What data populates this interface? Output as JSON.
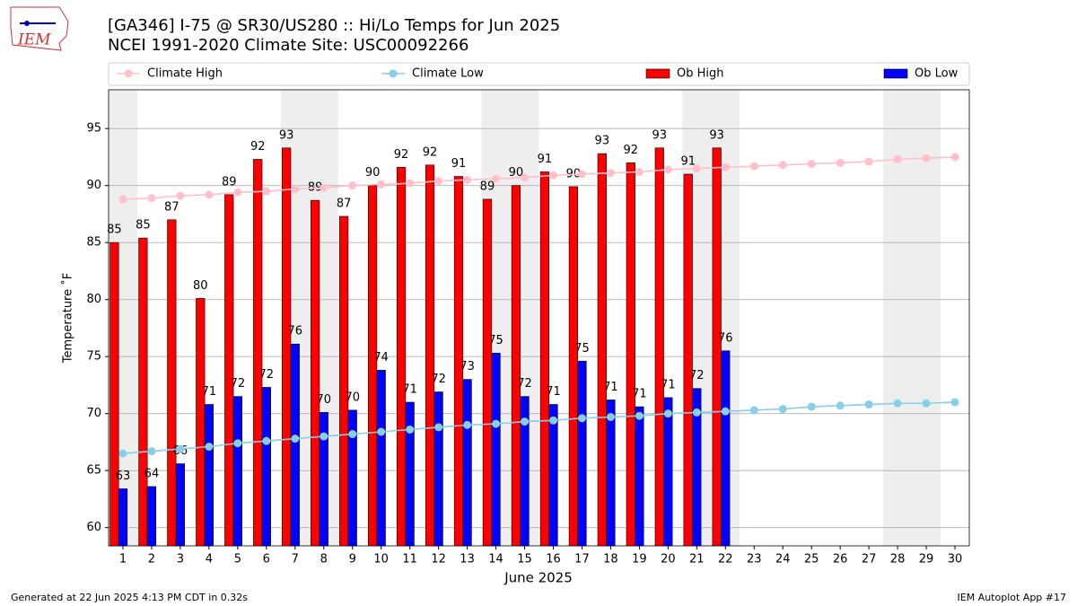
{
  "chart_data": {
    "type": "bar",
    "title": "[GA346] I-75 @ SR30/US280 :: Hi/Lo Temps for Jun 2025",
    "subtitle": "NCEI 1991-2020 Climate Site: USC00092266",
    "logo_text": "IEM",
    "xlabel": "June 2025",
    "ylabel": "Temperature ˚F",
    "footer_left": "Generated at 22 Jun 2025 4:13 PM CDT in 0.32s",
    "footer_right": "IEM Autoplot App #17",
    "x": [
      1,
      2,
      3,
      4,
      5,
      6,
      7,
      8,
      9,
      10,
      11,
      12,
      13,
      14,
      15,
      16,
      17,
      18,
      19,
      20,
      21,
      22,
      23,
      24,
      25,
      26,
      27,
      28,
      29,
      30
    ],
    "xlim": [
      0.5,
      30.5
    ],
    "xticks": [
      1,
      2,
      3,
      4,
      5,
      6,
      7,
      8,
      9,
      10,
      11,
      12,
      13,
      14,
      15,
      16,
      17,
      18,
      19,
      20,
      21,
      22,
      23,
      24,
      25,
      26,
      27,
      28,
      29,
      30
    ],
    "ylim": [
      58.4,
      98.4
    ],
    "yticks": [
      60,
      65,
      70,
      75,
      80,
      85,
      90,
      95
    ],
    "grid": true,
    "shaded_x": [
      [
        0.5,
        1.5
      ],
      [
        6.5,
        8.5
      ],
      [
        13.5,
        15.5
      ],
      [
        20.5,
        22.5
      ],
      [
        27.5,
        29.5
      ]
    ],
    "shade_color": "#eeeeee",
    "series": [
      {
        "name": "Climate High",
        "type": "line",
        "color": "#ffc0cb",
        "values": [
          88.8,
          88.9,
          89.1,
          89.2,
          89.4,
          89.5,
          89.7,
          89.8,
          90.0,
          90.1,
          90.2,
          90.4,
          90.5,
          90.6,
          90.7,
          90.9,
          91.0,
          91.1,
          91.2,
          91.4,
          91.5,
          91.6,
          91.7,
          91.8,
          91.9,
          92.0,
          92.1,
          92.3,
          92.4,
          92.5
        ]
      },
      {
        "name": "Climate Low",
        "type": "line",
        "color": "#87ceeb",
        "values": [
          66.5,
          66.7,
          66.9,
          67.1,
          67.4,
          67.6,
          67.8,
          68.0,
          68.2,
          68.4,
          68.6,
          68.8,
          69.0,
          69.1,
          69.3,
          69.4,
          69.6,
          69.7,
          69.8,
          70.0,
          70.1,
          70.2,
          70.3,
          70.4,
          70.6,
          70.7,
          70.8,
          70.9,
          70.9,
          71.0
        ]
      },
      {
        "name": "Ob High",
        "type": "bar",
        "color": "#ff0000",
        "values": [
          85.0,
          85.4,
          87.0,
          80.1,
          89.2,
          92.3,
          93.3,
          88.7,
          87.3,
          90.0,
          91.6,
          91.8,
          90.8,
          88.8,
          90.0,
          91.2,
          89.9,
          92.8,
          92.0,
          93.3,
          91.0,
          93.3,
          null,
          null,
          null,
          null,
          null,
          null,
          null,
          null
        ],
        "value_labels": [
          "85",
          "85",
          "87",
          "80",
          "89",
          "92",
          "93",
          "89",
          "87",
          "90",
          "92",
          "92",
          "91",
          "89",
          "90",
          "91",
          "90",
          "93",
          "92",
          "93",
          "91",
          "93",
          null,
          null,
          null,
          null,
          null,
          null,
          null,
          null
        ]
      },
      {
        "name": "Ob Low",
        "type": "bar",
        "color": "#0000ff",
        "values": [
          63.4,
          63.6,
          65.6,
          70.8,
          71.5,
          72.3,
          76.1,
          70.1,
          70.3,
          73.8,
          71.0,
          71.9,
          73.0,
          75.3,
          71.5,
          70.8,
          74.6,
          71.2,
          70.6,
          71.4,
          72.2,
          75.5,
          null,
          null,
          null,
          null,
          null,
          null,
          null,
          null
        ],
        "value_labels": [
          "63",
          "64",
          "66",
          "71",
          "72",
          "72",
          "76",
          "70",
          "70",
          "74",
          "71",
          "72",
          "73",
          "75",
          "72",
          "71",
          "75",
          "71",
          "71",
          "71",
          "72",
          "76",
          null,
          null,
          null,
          null,
          null,
          null,
          null,
          null
        ]
      }
    ]
  }
}
